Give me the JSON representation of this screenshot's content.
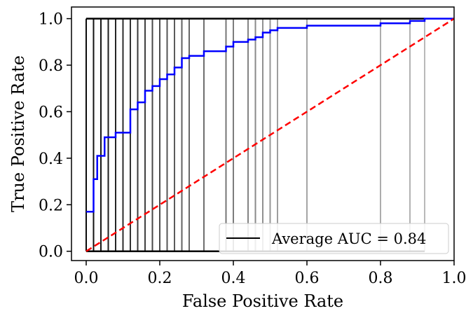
{
  "chart_data": {
    "type": "line",
    "xlabel": "False Positive Rate",
    "ylabel": "True Positive Rate",
    "xlim": [
      -0.04,
      1.0
    ],
    "ylim": [
      -0.04,
      1.05
    ],
    "xticks": [
      0.0,
      0.2,
      0.4,
      0.6,
      0.8,
      1.0
    ],
    "xtick_labels": [
      "0.0",
      "0.2",
      "0.4",
      "0.6",
      "0.8",
      "1.0"
    ],
    "yticks": [
      0.0,
      0.2,
      0.4,
      0.6,
      0.8,
      1.0
    ],
    "ytick_labels": [
      "0.0",
      "0.2",
      "0.4",
      "0.6",
      "0.8",
      "1.0"
    ],
    "grid": false,
    "legend": {
      "position": "lower-right",
      "entries": [
        {
          "label": "Average AUC = 0.84",
          "color": "#000000"
        }
      ]
    },
    "threshold_lines": {
      "x": [
        0.0,
        0.02,
        0.04,
        0.06,
        0.08,
        0.1,
        0.12,
        0.14,
        0.16,
        0.18,
        0.2,
        0.22,
        0.24,
        0.26,
        0.28,
        0.32,
        0.38,
        0.4,
        0.44,
        0.46,
        0.48,
        0.5,
        0.52,
        0.6,
        0.8,
        0.88,
        0.92
      ],
      "y_bottom": 0.0,
      "y_top": 1.0
    },
    "series": [
      {
        "color": "#0000ff",
        "style": "solid",
        "x": [
          0.0,
          0.02,
          0.02,
          0.03,
          0.03,
          0.04,
          0.04,
          0.05,
          0.05,
          0.06,
          0.06,
          0.08,
          0.08,
          0.12,
          0.12,
          0.14,
          0.14,
          0.16,
          0.16,
          0.18,
          0.18,
          0.2,
          0.2,
          0.22,
          0.22,
          0.24,
          0.24,
          0.26,
          0.26,
          0.28,
          0.28,
          0.32,
          0.32,
          0.38,
          0.38,
          0.4,
          0.4,
          0.44,
          0.44,
          0.46,
          0.46,
          0.48,
          0.48,
          0.5,
          0.5,
          0.52,
          0.52,
          0.6,
          0.6,
          0.8,
          0.8,
          0.88,
          0.88,
          0.92,
          0.92,
          1.0
        ],
        "y": [
          0.17,
          0.17,
          0.31,
          0.31,
          0.41,
          0.41,
          0.41,
          0.41,
          0.49,
          0.49,
          0.49,
          0.49,
          0.51,
          0.51,
          0.61,
          0.61,
          0.64,
          0.64,
          0.69,
          0.69,
          0.71,
          0.71,
          0.74,
          0.74,
          0.76,
          0.76,
          0.79,
          0.79,
          0.83,
          0.83,
          0.84,
          0.84,
          0.86,
          0.86,
          0.88,
          0.88,
          0.9,
          0.9,
          0.91,
          0.91,
          0.92,
          0.92,
          0.94,
          0.94,
          0.95,
          0.95,
          0.96,
          0.96,
          0.97,
          0.97,
          0.98,
          0.98,
          0.99,
          0.99,
          1.0,
          1.0
        ]
      },
      {
        "color": "#ff0000",
        "style": "dashed",
        "x": [
          0.0,
          1.0
        ],
        "y": [
          0.0,
          1.0
        ]
      }
    ]
  }
}
